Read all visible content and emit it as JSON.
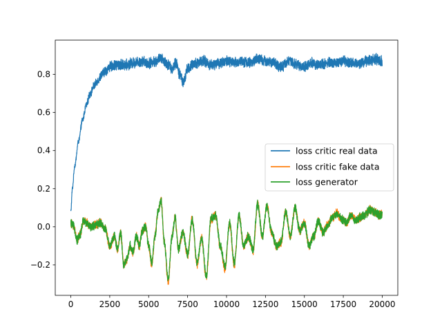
{
  "chart_data": {
    "type": "line",
    "xlim": [
      -1000,
      21000
    ],
    "ylim": [
      -0.36,
      0.98
    ],
    "x_ticks": [
      0,
      2500,
      5000,
      7500,
      10000,
      12500,
      15000,
      17500,
      20000
    ],
    "y_ticks": [
      -0.2,
      0.0,
      0.2,
      0.4,
      0.6,
      0.8
    ],
    "x_tick_labels": [
      "0",
      "2500",
      "5000",
      "7500",
      "10000",
      "12500",
      "15000",
      "17500",
      "20000"
    ],
    "y_tick_labels": [
      "−0.2",
      "0.0",
      "0.2",
      "0.4",
      "0.6",
      "0.8"
    ],
    "grid": false,
    "legend_position": "center-right",
    "series": [
      {
        "name": "loss critic real data",
        "color": "#1f77b4",
        "noise": 0.025,
        "x": [
          0,
          100,
          250,
          500,
          750,
          1000,
          1250,
          1500,
          1750,
          2000,
          2250,
          2500,
          3000,
          3500,
          4000,
          4500,
          5000,
          5500,
          5800,
          6000,
          6250,
          6500,
          6750,
          7000,
          7250,
          7500,
          8000,
          8500,
          9000,
          9500,
          10000,
          10500,
          11000,
          11500,
          12000,
          12500,
          13000,
          13500,
          14000,
          14500,
          15000,
          15500,
          16000,
          16500,
          17000,
          17500,
          18000,
          18500,
          19000,
          19500,
          20000
        ],
        "y": [
          0.08,
          0.2,
          0.32,
          0.45,
          0.56,
          0.64,
          0.7,
          0.74,
          0.77,
          0.8,
          0.82,
          0.84,
          0.85,
          0.85,
          0.86,
          0.87,
          0.86,
          0.87,
          0.89,
          0.87,
          0.85,
          0.83,
          0.86,
          0.8,
          0.76,
          0.83,
          0.86,
          0.87,
          0.85,
          0.86,
          0.87,
          0.86,
          0.87,
          0.86,
          0.88,
          0.87,
          0.86,
          0.84,
          0.87,
          0.85,
          0.84,
          0.86,
          0.85,
          0.86,
          0.86,
          0.87,
          0.86,
          0.86,
          0.87,
          0.88,
          0.87
        ]
      },
      {
        "name": "loss critic fake data",
        "color": "#ff7f0e",
        "noise": 0.02,
        "x": [
          0,
          200,
          400,
          600,
          800,
          1000,
          1300,
          1600,
          1900,
          2200,
          2500,
          2800,
          3000,
          3200,
          3400,
          3600,
          3800,
          4000,
          4200,
          4400,
          4600,
          4800,
          5000,
          5200,
          5400,
          5600,
          5800,
          6000,
          6250,
          6500,
          6700,
          6900,
          7200,
          7500,
          7800,
          8100,
          8400,
          8700,
          9000,
          9300,
          9600,
          9900,
          10200,
          10500,
          10800,
          11100,
          11400,
          11700,
          12000,
          12300,
          12600,
          12900,
          13200,
          13500,
          13800,
          14100,
          14400,
          14700,
          15000,
          15300,
          15600,
          15900,
          16200,
          16500,
          16800,
          17100,
          17400,
          17700,
          18000,
          18300,
          18600,
          18900,
          19200,
          19500,
          19800,
          20000
        ],
        "y": [
          0.02,
          0.0,
          -0.07,
          -0.04,
          0.03,
          0.02,
          0.0,
          0.01,
          0.02,
          -0.01,
          -0.1,
          -0.05,
          -0.12,
          -0.03,
          -0.2,
          -0.18,
          -0.1,
          -0.14,
          -0.05,
          -0.1,
          -0.02,
          0.0,
          -0.1,
          -0.2,
          -0.05,
          0.08,
          0.14,
          -0.08,
          -0.29,
          -0.05,
          0.05,
          -0.12,
          -0.03,
          -0.15,
          0.04,
          -0.2,
          -0.06,
          -0.27,
          0.04,
          0.06,
          -0.1,
          -0.22,
          0.02,
          -0.2,
          0.06,
          -0.1,
          -0.05,
          -0.13,
          0.12,
          -0.05,
          0.11,
          -0.03,
          -0.1,
          -0.08,
          0.08,
          -0.05,
          0.1,
          -0.02,
          0.02,
          -0.1,
          -0.05,
          0.03,
          -0.03,
          0.01,
          0.05,
          0.07,
          0.04,
          0.02,
          0.06,
          0.03,
          0.05,
          0.06,
          0.09,
          0.08,
          0.06,
          0.07
        ]
      },
      {
        "name": "loss generator",
        "color": "#2ca02c",
        "noise": 0.02,
        "x": [
          0,
          200,
          400,
          600,
          800,
          1000,
          1300,
          1600,
          1900,
          2200,
          2500,
          2800,
          3000,
          3200,
          3400,
          3600,
          3800,
          4000,
          4200,
          4400,
          4600,
          4800,
          5000,
          5200,
          5400,
          5600,
          5800,
          6000,
          6250,
          6500,
          6700,
          6900,
          7200,
          7500,
          7800,
          8100,
          8400,
          8700,
          9000,
          9300,
          9600,
          9900,
          10200,
          10500,
          10800,
          11100,
          11400,
          11700,
          12000,
          12300,
          12600,
          12900,
          13200,
          13500,
          13800,
          14100,
          14400,
          14700,
          15000,
          15300,
          15600,
          15900,
          16200,
          16500,
          16800,
          17100,
          17400,
          17700,
          18000,
          18300,
          18600,
          18900,
          19200,
          19500,
          19800,
          20000
        ],
        "y": [
          0.02,
          0.0,
          -0.07,
          -0.04,
          0.03,
          0.02,
          0.0,
          0.01,
          0.02,
          -0.01,
          -0.1,
          -0.05,
          -0.12,
          -0.03,
          -0.2,
          -0.17,
          -0.1,
          -0.13,
          -0.05,
          -0.1,
          -0.02,
          0.0,
          -0.1,
          -0.19,
          -0.05,
          0.08,
          0.14,
          -0.08,
          -0.28,
          -0.05,
          0.05,
          -0.12,
          -0.03,
          -0.14,
          0.04,
          -0.19,
          -0.06,
          -0.26,
          0.04,
          0.06,
          -0.1,
          -0.21,
          0.02,
          -0.19,
          0.06,
          -0.1,
          -0.05,
          -0.12,
          0.12,
          -0.05,
          0.11,
          -0.03,
          -0.1,
          -0.08,
          0.08,
          -0.05,
          0.1,
          -0.02,
          0.02,
          -0.1,
          -0.05,
          0.03,
          -0.03,
          0.01,
          0.05,
          0.07,
          0.04,
          0.02,
          0.06,
          0.03,
          0.05,
          0.06,
          0.09,
          0.08,
          0.06,
          0.07
        ]
      }
    ]
  }
}
